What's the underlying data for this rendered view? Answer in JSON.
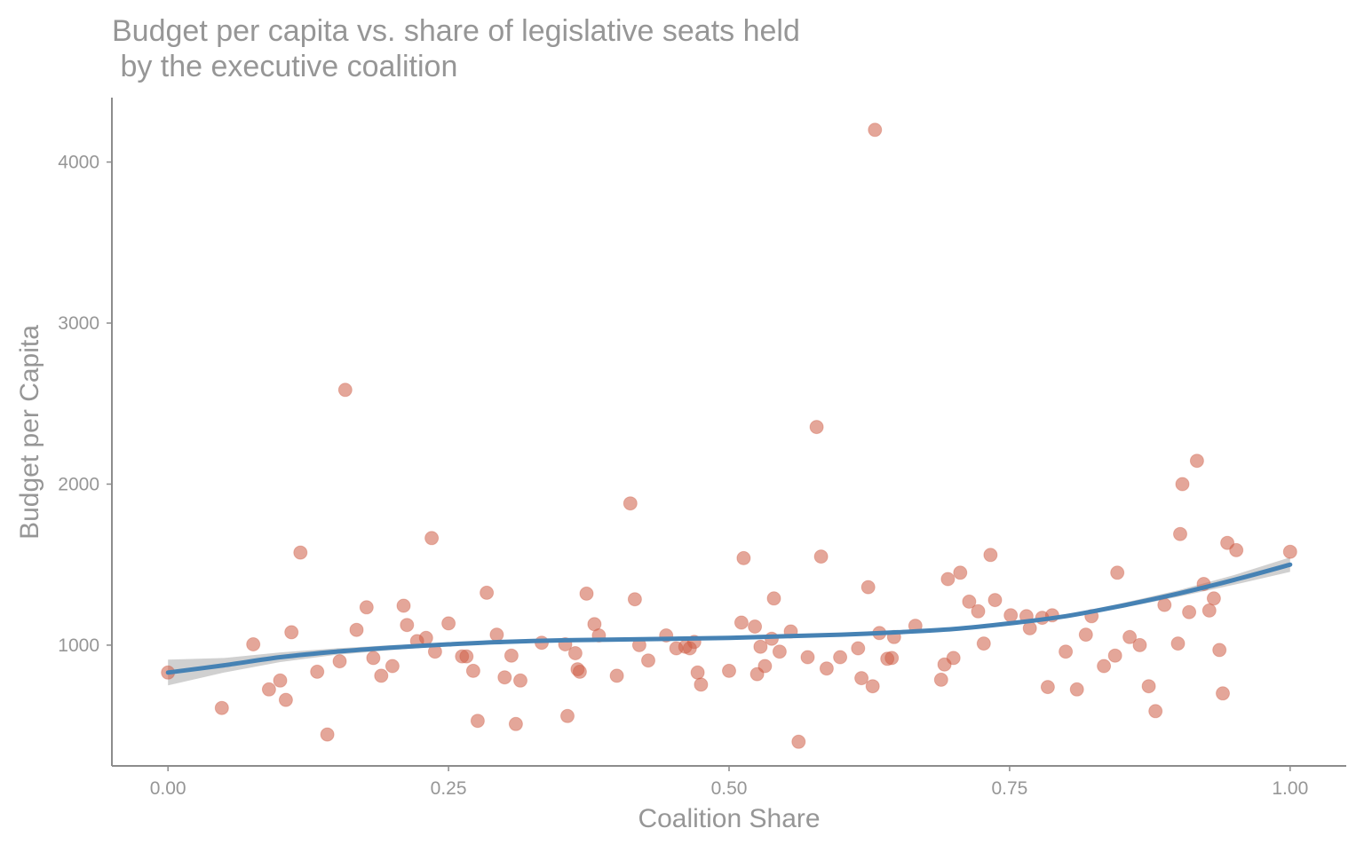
{
  "colors": {
    "points": "#cd5c45",
    "fit_line": "#4682b4",
    "ci_band": "#c8c8c8",
    "axis": "#8c8c8c",
    "text": "#969696"
  },
  "chart_data": {
    "type": "scatter",
    "title": "Budget per capita vs. share of legislative seats held",
    "subtitle": "by the executive coalition",
    "xlabel": "Coalition Share",
    "ylabel": "Budget per Capita",
    "xlim": [
      -0.05,
      1.05
    ],
    "ylim": [
      250,
      4400
    ],
    "x_ticks": [
      0,
      0.25,
      0.5,
      0.75,
      1
    ],
    "x_tick_labels": [
      "0.00",
      "0.25",
      "0.50",
      "0.75",
      "1.00"
    ],
    "y_ticks": [
      1000,
      2000,
      3000,
      4000
    ],
    "y_tick_labels": [
      "1000",
      "2000",
      "3000",
      "4000"
    ],
    "grid": false,
    "legend": "none",
    "series": [
      {
        "type": "scatter",
        "points": [
          [
            0.0,
            830
          ],
          [
            0.048,
            610
          ],
          [
            0.076,
            1005
          ],
          [
            0.09,
            725
          ],
          [
            0.1,
            780
          ],
          [
            0.105,
            660
          ],
          [
            0.11,
            1080
          ],
          [
            0.118,
            1575
          ],
          [
            0.133,
            835
          ],
          [
            0.142,
            445
          ],
          [
            0.153,
            900
          ],
          [
            0.158,
            2585
          ],
          [
            0.168,
            1095
          ],
          [
            0.177,
            1235
          ],
          [
            0.183,
            920
          ],
          [
            0.19,
            810
          ],
          [
            0.2,
            870
          ],
          [
            0.21,
            1245
          ],
          [
            0.213,
            1125
          ],
          [
            0.222,
            1025
          ],
          [
            0.23,
            1045
          ],
          [
            0.235,
            1665
          ],
          [
            0.238,
            960
          ],
          [
            0.25,
            1135
          ],
          [
            0.262,
            930
          ],
          [
            0.266,
            930
          ],
          [
            0.272,
            840
          ],
          [
            0.276,
            530
          ],
          [
            0.284,
            1325
          ],
          [
            0.293,
            1065
          ],
          [
            0.3,
            800
          ],
          [
            0.306,
            935
          ],
          [
            0.31,
            510
          ],
          [
            0.314,
            780
          ],
          [
            0.333,
            1015
          ],
          [
            0.354,
            1005
          ],
          [
            0.356,
            560
          ],
          [
            0.363,
            950
          ],
          [
            0.365,
            850
          ],
          [
            0.367,
            835
          ],
          [
            0.373,
            1320
          ],
          [
            0.38,
            1130
          ],
          [
            0.384,
            1060
          ],
          [
            0.4,
            810
          ],
          [
            0.412,
            1880
          ],
          [
            0.416,
            1285
          ],
          [
            0.42,
            1000
          ],
          [
            0.428,
            905
          ],
          [
            0.444,
            1060
          ],
          [
            0.453,
            980
          ],
          [
            0.461,
            990
          ],
          [
            0.465,
            980
          ],
          [
            0.469,
            1020
          ],
          [
            0.472,
            830
          ],
          [
            0.475,
            755
          ],
          [
            0.5,
            840
          ],
          [
            0.511,
            1140
          ],
          [
            0.513,
            1540
          ],
          [
            0.523,
            1115
          ],
          [
            0.525,
            820
          ],
          [
            0.528,
            990
          ],
          [
            0.532,
            870
          ],
          [
            0.538,
            1040
          ],
          [
            0.54,
            1290
          ],
          [
            0.545,
            960
          ],
          [
            0.555,
            1085
          ],
          [
            0.562,
            400
          ],
          [
            0.57,
            925
          ],
          [
            0.578,
            2355
          ],
          [
            0.582,
            1550
          ],
          [
            0.587,
            855
          ],
          [
            0.599,
            925
          ],
          [
            0.615,
            980
          ],
          [
            0.618,
            795
          ],
          [
            0.624,
            1360
          ],
          [
            0.628,
            745
          ],
          [
            0.63,
            4200
          ],
          [
            0.634,
            1075
          ],
          [
            0.641,
            915
          ],
          [
            0.645,
            920
          ],
          [
            0.647,
            1050
          ],
          [
            0.666,
            1120
          ],
          [
            0.689,
            785
          ],
          [
            0.692,
            880
          ],
          [
            0.695,
            1410
          ],
          [
            0.7,
            920
          ],
          [
            0.706,
            1450
          ],
          [
            0.714,
            1270
          ],
          [
            0.722,
            1210
          ],
          [
            0.727,
            1010
          ],
          [
            0.733,
            1560
          ],
          [
            0.737,
            1280
          ],
          [
            0.751,
            1185
          ],
          [
            0.765,
            1180
          ],
          [
            0.768,
            1105
          ],
          [
            0.779,
            1170
          ],
          [
            0.784,
            740
          ],
          [
            0.788,
            1185
          ],
          [
            0.8,
            960
          ],
          [
            0.81,
            725
          ],
          [
            0.818,
            1065
          ],
          [
            0.823,
            1180
          ],
          [
            0.834,
            870
          ],
          [
            0.844,
            935
          ],
          [
            0.846,
            1450
          ],
          [
            0.857,
            1050
          ],
          [
            0.866,
            1000
          ],
          [
            0.874,
            745
          ],
          [
            0.88,
            590
          ],
          [
            0.888,
            1250
          ],
          [
            0.9,
            1010
          ],
          [
            0.902,
            1690
          ],
          [
            0.904,
            2000
          ],
          [
            0.91,
            1205
          ],
          [
            0.917,
            2145
          ],
          [
            0.923,
            1380
          ],
          [
            0.928,
            1215
          ],
          [
            0.932,
            1290
          ],
          [
            0.937,
            970
          ],
          [
            0.94,
            700
          ],
          [
            0.944,
            1635
          ],
          [
            0.952,
            1590
          ],
          [
            1.0,
            1580
          ]
        ]
      },
      {
        "type": "line",
        "points": [
          [
            0.0,
            830
          ],
          [
            0.05,
            875
          ],
          [
            0.1,
            925
          ],
          [
            0.15,
            960
          ],
          [
            0.2,
            985
          ],
          [
            0.25,
            1005
          ],
          [
            0.3,
            1020
          ],
          [
            0.35,
            1030
          ],
          [
            0.4,
            1035
          ],
          [
            0.45,
            1040
          ],
          [
            0.5,
            1045
          ],
          [
            0.55,
            1055
          ],
          [
            0.6,
            1065
          ],
          [
            0.65,
            1080
          ],
          [
            0.7,
            1100
          ],
          [
            0.75,
            1135
          ],
          [
            0.8,
            1180
          ],
          [
            0.85,
            1245
          ],
          [
            0.9,
            1320
          ],
          [
            0.95,
            1405
          ],
          [
            1.0,
            1500
          ]
        ]
      },
      {
        "type": "band",
        "upper": [
          [
            0.0,
            910
          ],
          [
            0.05,
            920
          ],
          [
            0.1,
            955
          ],
          [
            0.15,
            980
          ],
          [
            0.2,
            1000
          ],
          [
            0.25,
            1015
          ],
          [
            0.3,
            1030
          ],
          [
            0.35,
            1040
          ],
          [
            0.4,
            1045
          ],
          [
            0.45,
            1050
          ],
          [
            0.5,
            1055
          ],
          [
            0.55,
            1065
          ],
          [
            0.6,
            1075
          ],
          [
            0.65,
            1090
          ],
          [
            0.7,
            1110
          ],
          [
            0.75,
            1145
          ],
          [
            0.8,
            1190
          ],
          [
            0.85,
            1260
          ],
          [
            0.9,
            1340
          ],
          [
            0.95,
            1435
          ],
          [
            1.0,
            1545
          ]
        ],
        "lower": [
          [
            0.0,
            750
          ],
          [
            0.05,
            830
          ],
          [
            0.1,
            895
          ],
          [
            0.15,
            940
          ],
          [
            0.2,
            970
          ],
          [
            0.25,
            995
          ],
          [
            0.3,
            1010
          ],
          [
            0.35,
            1020
          ],
          [
            0.4,
            1025
          ],
          [
            0.45,
            1030
          ],
          [
            0.5,
            1035
          ],
          [
            0.55,
            1045
          ],
          [
            0.6,
            1055
          ],
          [
            0.65,
            1070
          ],
          [
            0.7,
            1090
          ],
          [
            0.75,
            1125
          ],
          [
            0.8,
            1170
          ],
          [
            0.85,
            1230
          ],
          [
            0.9,
            1300
          ],
          [
            0.95,
            1375
          ],
          [
            1.0,
            1455
          ]
        ]
      }
    ]
  }
}
